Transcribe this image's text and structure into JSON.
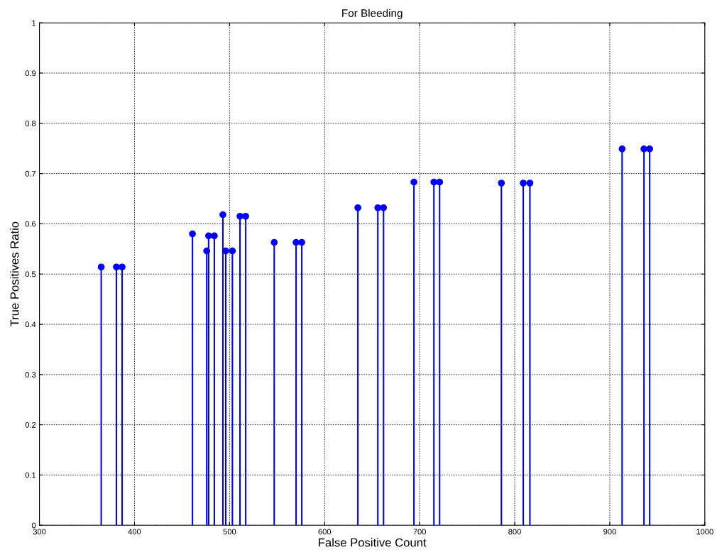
{
  "chart_data": {
    "type": "lollipop",
    "title": "For Bleeding",
    "xlabel": "False Positive Count",
    "ylabel": "True Positives Ratio",
    "x": [
      365,
      381,
      387,
      461,
      476,
      478,
      484,
      493,
      496,
      503,
      511,
      517,
      547,
      570,
      576,
      635,
      656,
      662,
      694,
      715,
      721,
      786,
      809,
      816,
      913,
      936,
      942
    ],
    "series": [
      {
        "color": "#0000ff",
        "values": [
          0.514,
          0.514,
          0.514,
          0.58,
          0.546,
          0.576,
          0.576,
          0.618,
          0.546,
          0.546,
          0.615,
          0.615,
          0.563,
          0.563,
          0.563,
          0.632,
          0.632,
          0.632,
          0.683,
          0.683,
          0.683,
          0.681,
          0.681,
          0.681,
          0.749,
          0.749,
          0.749
        ]
      }
    ],
    "xlim": [
      300,
      1000
    ],
    "xticks": [
      300,
      400,
      500,
      600,
      700,
      800,
      900,
      1000
    ],
    "ylim": [
      0,
      1
    ],
    "yticks": [
      0,
      0.1,
      0.2,
      0.3,
      0.4,
      0.5,
      0.6,
      0.7,
      0.8,
      0.9,
      1
    ],
    "grid": true,
    "marker": "circle"
  }
}
